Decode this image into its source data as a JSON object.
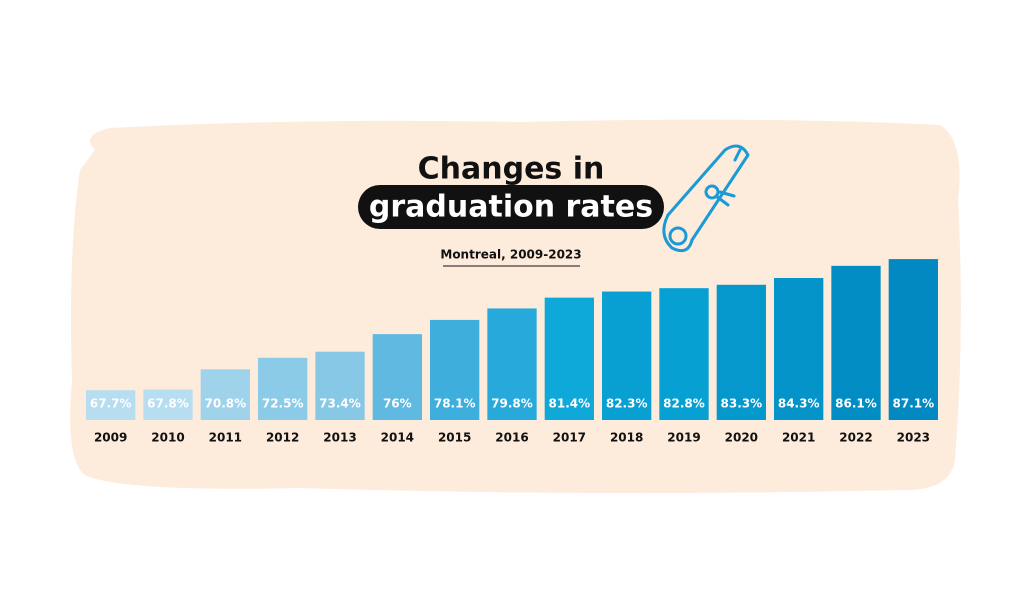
{
  "chart_data": {
    "type": "bar",
    "title": [
      "Changes in",
      "graduation rates"
    ],
    "subtitle": "Montreal, 2009-2023",
    "categories": [
      "2009",
      "2010",
      "2011",
      "2012",
      "2013",
      "2014",
      "2015",
      "2016",
      "2017",
      "2018",
      "2019",
      "2020",
      "2021",
      "2022",
      "2023"
    ],
    "values": [
      67.7,
      67.8,
      70.8,
      72.5,
      73.4,
      76,
      78.1,
      79.8,
      81.4,
      82.3,
      82.8,
      83.3,
      84.3,
      86.1,
      87.1
    ],
    "value_labels": [
      "67.7%",
      "67.8%",
      "70.8%",
      "72.5%",
      "73.4%",
      "76%",
      "78.1%",
      "79.8%",
      "81.4%",
      "82.3%",
      "82.8%",
      "83.3%",
      "84.3%",
      "86.1%",
      "87.1%"
    ],
    "colors": [
      "#b6ddf0",
      "#b6ddf0",
      "#9fd3ec",
      "#8ccbe8",
      "#86c8e6",
      "#5fb9e0",
      "#3eaedc",
      "#27a9dc",
      "#0ea8d9",
      "#08a0d3",
      "#06a0d2",
      "#0598cc",
      "#0494ca",
      "#028cc4",
      "#0289c2"
    ],
    "ylim": [
      63.3,
      88
    ]
  }
}
